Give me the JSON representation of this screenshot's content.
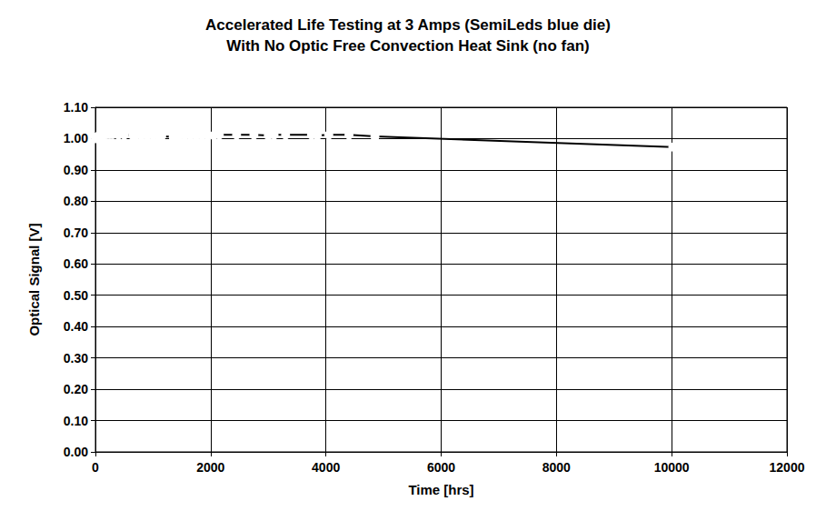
{
  "chart_data": {
    "type": "line",
    "title": "Accelerated Life Testing at 3 Amps (SemiLeds blue die)",
    "subtitle": "With No Optic Free Convection Heat Sink (no fan)",
    "x_label": "Time [hrs]",
    "y_label": "Optical Signal [V]",
    "x": [
      0,
      20,
      50,
      100,
      150,
      200,
      250,
      300,
      400,
      500,
      650,
      700,
      800,
      900,
      1000,
      1100,
      1150,
      1350,
      1450,
      1550,
      1650,
      1750,
      1850,
      1950,
      2050,
      2150,
      2450,
      2750,
      3000,
      3100,
      3300,
      3750,
      3850,
      4050,
      4400,
      4850,
      10020
    ],
    "series": [
      {
        "name": "Optical Signal",
        "color": "#000000",
        "marker": "circle",
        "line_style": "solid",
        "values": [
          1.0,
          1.005,
          1.008,
          1.01,
          1.012,
          1.013,
          1.013,
          1.013,
          1.012,
          1.012,
          1.01,
          1.01,
          1.01,
          1.01,
          1.01,
          1.008,
          1.008,
          1.005,
          1.008,
          1.01,
          1.01,
          1.01,
          1.01,
          1.01,
          1.01,
          1.012,
          1.012,
          1.012,
          1.01,
          1.012,
          1.012,
          1.012,
          1.01,
          1.012,
          1.012,
          1.007,
          0.973
        ]
      }
    ],
    "xlim": [
      0,
      12000
    ],
    "xticks": [
      0,
      2000,
      4000,
      6000,
      8000,
      10000,
      12000
    ],
    "ylim": [
      0,
      1.1
    ],
    "yticks": [
      {
        "value": 0,
        "label": "0.00"
      },
      {
        "value": 0.1,
        "label": "0.10"
      },
      {
        "value": 0.2,
        "label": "0.20"
      },
      {
        "value": 0.3,
        "label": "0.30"
      },
      {
        "value": 0.4,
        "label": "0.40"
      },
      {
        "value": 0.5,
        "label": "0.50"
      },
      {
        "value": 0.6,
        "label": "0.60"
      },
      {
        "value": 0.7,
        "label": "0.70"
      },
      {
        "value": 0.8,
        "label": "0.80"
      },
      {
        "value": 0.9,
        "label": "0.90"
      },
      {
        "value": 1.0,
        "label": "1.00"
      },
      {
        "value": 1.1,
        "label": "1.10"
      }
    ],
    "grid": true
  }
}
